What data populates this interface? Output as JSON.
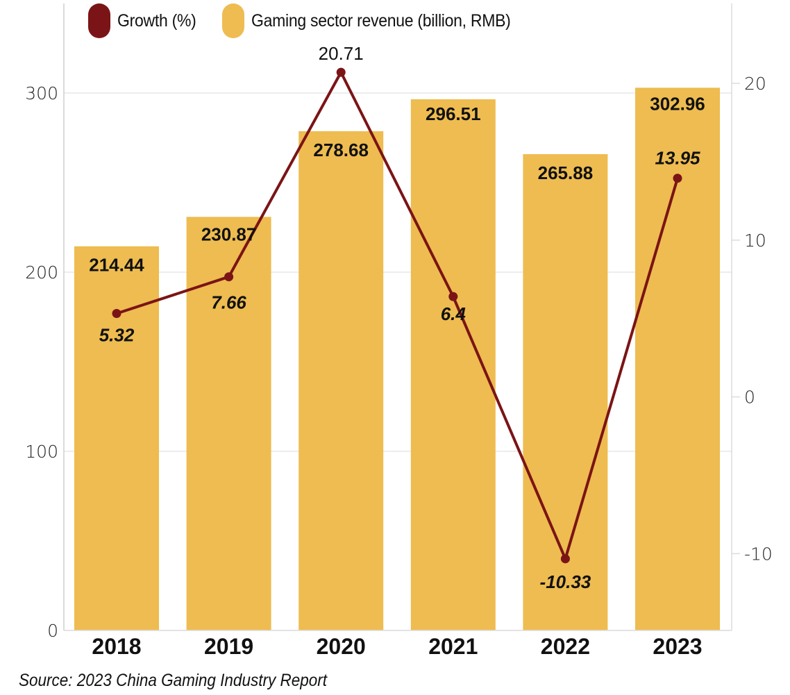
{
  "chart_data": {
    "type": "bar+line",
    "categories": [
      "2018",
      "2019",
      "2020",
      "2021",
      "2022",
      "2023"
    ],
    "series": [
      {
        "name": "Gaming sector revenue (billion, RMB)",
        "type": "bar",
        "axis": "left",
        "color": "#EEBC50",
        "values": [
          214.44,
          230.87,
          278.68,
          296.51,
          265.88,
          302.96
        ],
        "labels": [
          "214.44",
          "230.87",
          "278.68",
          "296.51",
          "265.88",
          "302.96"
        ]
      },
      {
        "name": "Growth (%)",
        "type": "line",
        "axis": "right",
        "color": "#7B1416",
        "values": [
          5.32,
          7.66,
          20.71,
          6.4,
          -10.33,
          13.95
        ],
        "labels": [
          "5.32",
          "7.66",
          "20.71",
          "6.4",
          "-10.33",
          "13.95"
        ]
      }
    ],
    "left_axis": {
      "ticks": [
        0,
        100,
        200,
        300
      ],
      "tick_labels": [
        "0",
        "100",
        "200",
        "300"
      ],
      "range": [
        0,
        350
      ]
    },
    "right_axis": {
      "ticks": [
        -10,
        0,
        10,
        20
      ],
      "tick_labels": [
        "-10",
        "0",
        "10",
        "20"
      ],
      "range": [
        -14.9,
        25.1
      ]
    },
    "grid": true,
    "legend_position": "top-left",
    "title": "",
    "xlabel": "",
    "ylabel": ""
  },
  "legend": {
    "items": [
      {
        "label": "Growth (%)",
        "color": "#7B1416"
      },
      {
        "label": "Gaming sector revenue (billion, RMB)",
        "color": "#EEBC50"
      }
    ]
  },
  "source": "Source: 2023 China Gaming Industry Report"
}
